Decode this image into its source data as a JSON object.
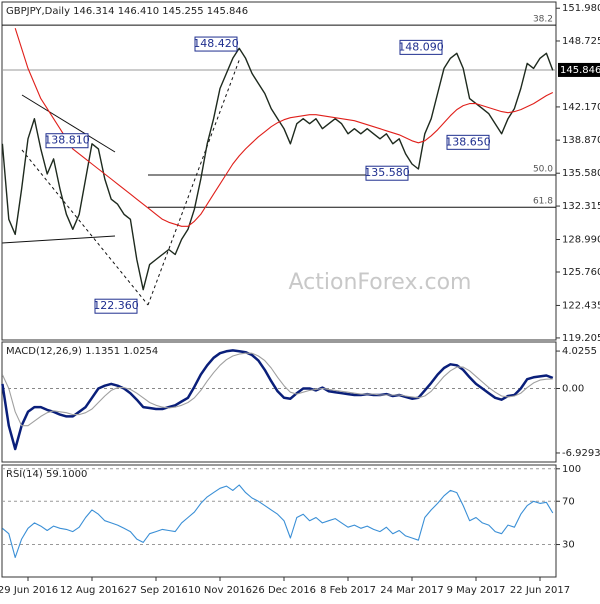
{
  "chart_data": [
    {
      "type": "line",
      "title": "GBPJPY,Daily  146.314 146.410 145.255 145.846",
      "series": [
        {
          "color": "#1e2a1e",
          "values": [
            138.5,
            131,
            129.5,
            134,
            139,
            141,
            138,
            135.5,
            137,
            134,
            131.5,
            130,
            131.5,
            135,
            138.5,
            138,
            135,
            133,
            132.5,
            131.5,
            131,
            127,
            124,
            126.5,
            127,
            127.5,
            128,
            127.5,
            129,
            130,
            132,
            135,
            138.5,
            141,
            144,
            145.5,
            147,
            148,
            147,
            145.5,
            144.5,
            143.5,
            142,
            141,
            140,
            138.5,
            140.5,
            141,
            140.5,
            141,
            140,
            140.5,
            141,
            140.5,
            139.5,
            140,
            139.5,
            140,
            139.5,
            139,
            139.5,
            138.5,
            139,
            137.5,
            136.5,
            136,
            139.5,
            141,
            143.5,
            146,
            147,
            147.5,
            146,
            143,
            142.5,
            142,
            141.5,
            140.5,
            139.5,
            141,
            142,
            144,
            146.5,
            146,
            147,
            147.5,
            145.8
          ]
        },
        {
          "color": "#e0201b",
          "values": [
            null,
            null,
            150,
            148,
            146,
            144.5,
            143,
            142,
            141,
            140,
            139,
            138,
            137.5,
            137,
            136.5,
            136,
            135.5,
            135,
            134.5,
            134,
            133.5,
            133,
            132.5,
            132,
            131.5,
            131,
            130.7,
            130.5,
            130.3,
            130.3,
            130.8,
            131.5,
            132.5,
            133.5,
            134.5,
            135.5,
            136.5,
            137.3,
            138,
            138.6,
            139.2,
            139.7,
            140.2,
            140.6,
            140.9,
            141.1,
            141.2,
            141.3,
            141.4,
            141.4,
            141.3,
            141.2,
            141.1,
            141,
            140.9,
            140.8,
            140.6,
            140.4,
            140.2,
            140,
            139.8,
            139.6,
            139.4,
            139.1,
            138.8,
            138.6,
            138.8,
            139.3,
            139.9,
            140.6,
            141.3,
            141.9,
            142.3,
            142.5,
            142.5,
            142.3,
            142.1,
            141.9,
            141.7,
            141.6,
            141.7,
            141.9,
            142.2,
            142.5,
            142.9,
            143.3,
            143.6
          ]
        }
      ],
      "ylim": [
        119.0,
        152.6
      ],
      "yticks": [
        {
          "value": 151.98,
          "label": "151.980"
        },
        148.725,
        {
          "value": 142.17,
          "label": "142.170"
        },
        {
          "value": 138.87,
          "label": "138.870"
        },
        {
          "value": 135.58,
          "label": "135.580"
        },
        132.315,
        {
          "value": 128.99,
          "label": "128.990"
        },
        {
          "value": 125.76,
          "label": "125.760"
        },
        122.435,
        119.205
      ],
      "last_price": 145.846,
      "annotations": [
        {
          "value": 148.42,
          "label": "148.420"
        },
        {
          "value": 148.09,
          "label": "148.090"
        },
        {
          "value": 138.81,
          "label": "138.810"
        },
        {
          "value": 138.65,
          "label": "138.650"
        },
        {
          "value": 135.58,
          "label": "135.580"
        },
        {
          "value": 122.36,
          "label": "122.360"
        }
      ],
      "fib_levels": [
        {
          "label": "38.2",
          "value": 150.3
        },
        {
          "label": "50.0",
          "value": 135.4
        },
        {
          "label": "61.8",
          "value": 132.2
        }
      ],
      "watermark": "ActionForex.com"
    },
    {
      "type": "line",
      "title": "MACD(12,26,9) 1.1351 1.0254",
      "series": [
        {
          "color": "#0a1f7a",
          "values": [
            0.5,
            -4,
            -6.5,
            -4,
            -2.5,
            -2,
            -2,
            -2.3,
            -2.5,
            -2.8,
            -3,
            -3,
            -2.5,
            -2,
            -1,
            0,
            0.3,
            0.5,
            0.3,
            0,
            -0.5,
            -1.2,
            -2,
            -2.1,
            -2.2,
            -2.2,
            -2,
            -1.8,
            -1.4,
            -1,
            0.2,
            1.5,
            2.5,
            3.3,
            3.8,
            4.0,
            4.1,
            4.0,
            3.9,
            3.6,
            3.0,
            2.0,
            0.8,
            -0.3,
            -1,
            -1.1,
            -0.5,
            0,
            0,
            -0.2,
            0.1,
            -0.3,
            -0.4,
            -0.5,
            -0.6,
            -0.7,
            -0.7,
            -0.6,
            -0.7,
            -0.7,
            -0.6,
            -0.8,
            -0.7,
            -0.9,
            -1.1,
            -1.0,
            -0.2,
            0.6,
            1.5,
            2.2,
            2.6,
            2.5,
            2.0,
            1.2,
            0.5,
            0,
            -0.5,
            -1,
            -1.2,
            -0.8,
            -0.7,
            0,
            1.0,
            1.2,
            1.3,
            1.4,
            1.14
          ]
        },
        {
          "color": "#a0a0a0",
          "values": [
            1.5,
            0,
            -2.5,
            -4,
            -4,
            -3.5,
            -3,
            -2.6,
            -2.4,
            -2.5,
            -2.6,
            -2.8,
            -2.8,
            -2.6,
            -2.2,
            -1.5,
            -0.8,
            -0.2,
            0.1,
            0.1,
            -0.1,
            -0.5,
            -1,
            -1.5,
            -1.8,
            -2,
            -2.1,
            -2,
            -1.8,
            -1.5,
            -1,
            -0.2,
            0.8,
            1.7,
            2.5,
            3.1,
            3.5,
            3.7,
            3.8,
            3.8,
            3.5,
            3.0,
            2.2,
            1.2,
            0.3,
            -0.4,
            -0.6,
            -0.4,
            -0.2,
            -0.1,
            0,
            -0.1,
            -0.2,
            -0.3,
            -0.4,
            -0.5,
            -0.6,
            -0.6,
            -0.6,
            -0.7,
            -0.7,
            -0.7,
            -0.7,
            -0.8,
            -0.9,
            -1.0,
            -0.8,
            -0.3,
            0.5,
            1.3,
            1.9,
            2.3,
            2.3,
            1.9,
            1.3,
            0.7,
            0.1,
            -0.4,
            -0.8,
            -0.9,
            -0.8,
            -0.5,
            0.1,
            0.6,
            0.9,
            1.0,
            1.03
          ]
        }
      ],
      "ylim": [
        -7.9,
        5.0
      ],
      "yticks": [
        4.0255,
        {
          "value": 0,
          "label": "0.00"
        },
        -6.9293
      ]
    },
    {
      "type": "line",
      "title": "RSI(14) 59.1000",
      "categories": [
        null,
        null,
        null,
        null,
        "29 Jun 2016",
        null,
        null,
        null,
        null,
        null,
        null,
        null,
        null,
        null,
        "12 Aug 2016",
        null,
        null,
        null,
        null,
        null,
        null,
        null,
        null,
        null,
        "27 Sep 2016",
        null,
        null,
        null,
        null,
        null,
        null,
        null,
        null,
        null,
        "10 Nov 2016",
        null,
        null,
        null,
        null,
        null,
        null,
        null,
        null,
        null,
        "26 Dec 2016",
        null,
        null,
        null,
        null,
        null,
        null,
        null,
        null,
        null,
        "8 Feb 2017",
        null,
        null,
        null,
        null,
        null,
        null,
        null,
        null,
        null,
        "24 Mar 2017",
        null,
        null,
        null,
        null,
        null,
        null,
        null,
        null,
        null,
        "9 May 2017",
        null,
        null,
        null,
        null,
        null,
        null,
        null,
        null,
        null,
        "22 Jun 2017",
        null,
        null
      ],
      "series": [
        {
          "color": "#3a8fd6",
          "values": [
            45,
            40,
            18,
            35,
            45,
            50,
            47,
            43,
            47,
            45,
            44,
            42,
            46,
            55,
            62,
            58,
            52,
            50,
            48,
            45,
            42,
            35,
            32,
            40,
            42,
            44,
            43,
            42,
            50,
            55,
            60,
            68,
            74,
            78,
            82,
            84,
            80,
            85,
            78,
            73,
            70,
            66,
            62,
            58,
            52,
            36,
            55,
            58,
            52,
            55,
            50,
            52,
            54,
            50,
            46,
            48,
            45,
            47,
            44,
            42,
            46,
            40,
            43,
            38,
            36,
            34,
            55,
            62,
            68,
            75,
            80,
            78,
            66,
            52,
            55,
            50,
            48,
            42,
            40,
            48,
            46,
            58,
            66,
            70,
            68,
            69,
            59.1
          ]
        }
      ],
      "ylim": [
        0,
        103.5
      ],
      "yticks": [
        100,
        70,
        30
      ]
    }
  ]
}
